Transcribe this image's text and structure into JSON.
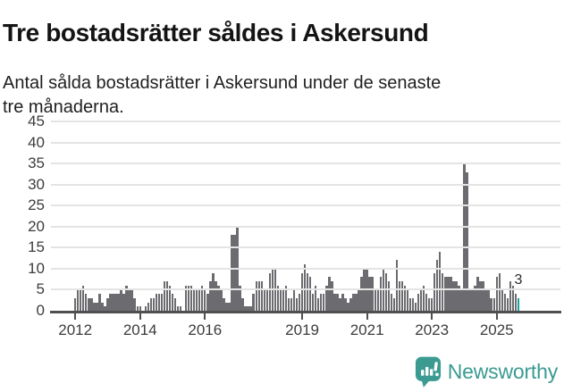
{
  "header": {
    "title": "Tre bostadsrätter såldes i Askersund",
    "subtitle_lines": [
      "Antal sålda bostadsrätter i Askersund under de senaste",
      "tre månaderna."
    ]
  },
  "chart_data": {
    "type": "bar",
    "title": "Tre bostadsrätter såldes i Askersund",
    "description": "Antal sålda bostadsrätter i Askersund under de senaste tre månaderna, månadsvis serie",
    "frequency": "monthly",
    "start_month": "2012-01",
    "end_month": "2025-09",
    "ylim": [
      0,
      45
    ],
    "grid": "horizontal",
    "y_ticks": [
      0,
      5,
      10,
      15,
      20,
      25,
      30,
      35,
      40,
      45
    ],
    "x_ticks": [
      {
        "label": "2012",
        "month_index": 0
      },
      {
        "label": "2014",
        "month_index": 24
      },
      {
        "label": "2016",
        "month_index": 48
      },
      {
        "label": "2019",
        "month_index": 84
      },
      {
        "label": "2021",
        "month_index": 108
      },
      {
        "label": "2023",
        "month_index": 132
      },
      {
        "label": "2025",
        "month_index": 156
      }
    ],
    "values": [
      3,
      5,
      5,
      6,
      4,
      3,
      3,
      2,
      2,
      4,
      2,
      1,
      3,
      4,
      4,
      4,
      4,
      5,
      4,
      6,
      5,
      5,
      3,
      1,
      1,
      0,
      1,
      2,
      3,
      3,
      4,
      4,
      4,
      7,
      7,
      6,
      4,
      3,
      1,
      1,
      0,
      6,
      6,
      6,
      5,
      5,
      5,
      6,
      5,
      4,
      7,
      9,
      7,
      6,
      5,
      3,
      2,
      2,
      18,
      18,
      20,
      6,
      3,
      1,
      1,
      1,
      4,
      7,
      7,
      7,
      5,
      5,
      9,
      10,
      10,
      6,
      5,
      5,
      6,
      3,
      3,
      5,
      3,
      4,
      9,
      11,
      9,
      8,
      4,
      6,
      3,
      4,
      4,
      6,
      8,
      7,
      4,
      4,
      3,
      4,
      3,
      2,
      3,
      4,
      4,
      5,
      8,
      10,
      10,
      8,
      8,
      5,
      5,
      8,
      10,
      9,
      7,
      4,
      3,
      12,
      7,
      7,
      6,
      5,
      3,
      3,
      2,
      4,
      5,
      6,
      4,
      3,
      3,
      9,
      12,
      14,
      9,
      8,
      8,
      8,
      7,
      7,
      6,
      5,
      35,
      33,
      5,
      5,
      6,
      8,
      7,
      7,
      5,
      5,
      3,
      3,
      8,
      9,
      5,
      4,
      3,
      7,
      6,
      4,
      3
    ],
    "bar_color": "#6c6c70",
    "highlight": {
      "position": "last",
      "value": 3,
      "label": "3",
      "color": "#17a39c"
    }
  },
  "footer": {
    "brand": "Newsworthy",
    "brand_color": "#3b9a92",
    "logo_icon": "speech-bubble-bar-chart-exclamation"
  }
}
